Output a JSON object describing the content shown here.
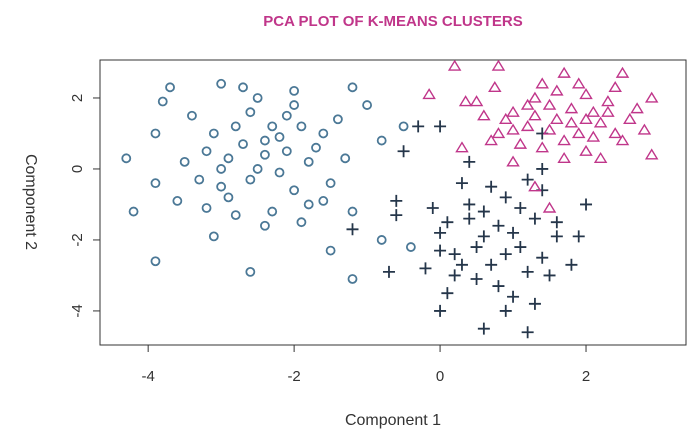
{
  "chart_data": {
    "type": "scatter",
    "title": "PCA PLOT OF K-MEANS CLUSTERS",
    "xlabel": "Component 1",
    "ylabel": "Component 2",
    "xlim": [
      -4.66,
      3.37
    ],
    "ylim": [
      -4.96,
      3.07
    ],
    "xticks": [
      -4,
      -2,
      0,
      2
    ],
    "yticks": [
      -4,
      -2,
      0,
      2
    ],
    "grid": false,
    "colors": {
      "title": "#c0368a",
      "circle": "#4b7896",
      "plus": "#25364a",
      "triangle": "#c0368a"
    },
    "series": [
      {
        "marker": "circle",
        "points": [
          [
            -4.3,
            0.3
          ],
          [
            -4.2,
            -1.2
          ],
          [
            -3.9,
            -2.6
          ],
          [
            -3.8,
            1.9
          ],
          [
            -3.7,
            2.3
          ],
          [
            -3.0,
            2.4
          ],
          [
            -2.6,
            -2.9
          ],
          [
            -3.1,
            -1.9
          ],
          [
            -1.2,
            2.3
          ],
          [
            -1.0,
            1.8
          ],
          [
            -1.2,
            -3.1
          ],
          [
            -1.2,
            -1.2
          ],
          [
            -0.8,
            -2.0
          ],
          [
            -0.5,
            1.2
          ],
          [
            -0.8,
            0.8
          ],
          [
            -1.5,
            -2.3
          ],
          [
            -0.4,
            -2.2
          ],
          [
            -3.9,
            1.0
          ],
          [
            -3.9,
            -0.4
          ],
          [
            -3.6,
            -0.9
          ],
          [
            -2.4,
            0.4
          ],
          [
            -2.8,
            1.2
          ],
          [
            -2.1,
            1.5
          ],
          [
            -2.6,
            -0.3
          ],
          [
            -2.0,
            -0.6
          ],
          [
            -3.2,
            0.5
          ],
          [
            -2.3,
            -1.2
          ],
          [
            -1.8,
            0.2
          ],
          [
            -2.9,
            -0.8
          ],
          [
            -2.5,
            2.0
          ],
          [
            -1.6,
            1.0
          ],
          [
            -3.4,
            1.5
          ],
          [
            -2.2,
            0.9
          ],
          [
            -1.9,
            -1.5
          ],
          [
            -3.0,
            0.0
          ],
          [
            -2.7,
            0.7
          ],
          [
            -1.5,
            -0.4
          ],
          [
            -3.3,
            -0.3
          ],
          [
            -2.0,
            2.2
          ],
          [
            -2.4,
            -1.6
          ],
          [
            -2.6,
            1.6
          ],
          [
            -1.7,
            0.6
          ],
          [
            -3.1,
            1.0
          ],
          [
            -2.2,
            -0.1
          ],
          [
            -2.8,
            -1.3
          ],
          [
            -1.4,
            1.4
          ],
          [
            -3.5,
            0.2
          ],
          [
            -2.3,
            1.2
          ],
          [
            -1.8,
            -1.0
          ],
          [
            -2.5,
            0.0
          ],
          [
            -2.9,
            0.3
          ],
          [
            -2.1,
            0.5
          ],
          [
            -1.6,
            -0.9
          ],
          [
            -3.2,
            -1.1
          ],
          [
            -2.7,
            2.3
          ],
          [
            -1.3,
            0.3
          ],
          [
            -2.0,
            1.8
          ],
          [
            -3.0,
            -0.5
          ],
          [
            -2.4,
            0.8
          ],
          [
            -1.9,
            1.2
          ]
        ]
      },
      {
        "marker": "plus",
        "points": [
          [
            0.0,
            1.2
          ],
          [
            -0.7,
            -2.9
          ],
          [
            0.0,
            -4.0
          ],
          [
            0.6,
            -4.5
          ],
          [
            1.2,
            -4.6
          ],
          [
            1.6,
            -1.9
          ],
          [
            1.9,
            -1.9
          ],
          [
            2.0,
            -1.0
          ],
          [
            1.8,
            -2.7
          ],
          [
            -0.6,
            -0.9
          ],
          [
            -0.5,
            0.5
          ],
          [
            -0.6,
            -1.3
          ],
          [
            1.4,
            0.0
          ],
          [
            1.4,
            -0.6
          ],
          [
            -0.3,
            1.2
          ],
          [
            1.4,
            1.0
          ],
          [
            -1.2,
            -1.7
          ],
          [
            0.8,
            -1.6
          ],
          [
            0.4,
            -1.0
          ],
          [
            1.1,
            -2.2
          ],
          [
            0.2,
            -2.4
          ],
          [
            0.9,
            -0.8
          ],
          [
            0.5,
            -3.1
          ],
          [
            1.3,
            -1.4
          ],
          [
            0.0,
            -1.8
          ],
          [
            0.7,
            -2.7
          ],
          [
            1.0,
            -3.6
          ],
          [
            0.3,
            -0.4
          ],
          [
            1.5,
            -3.0
          ],
          [
            -0.2,
            -2.8
          ],
          [
            0.6,
            -1.9
          ],
          [
            1.2,
            -0.3
          ],
          [
            0.1,
            -3.5
          ],
          [
            0.9,
            -2.4
          ],
          [
            0.4,
            -1.4
          ],
          [
            1.4,
            -2.5
          ],
          [
            0.7,
            -0.5
          ],
          [
            -0.1,
            -1.1
          ],
          [
            0.5,
            -2.2
          ],
          [
            1.1,
            -1.1
          ],
          [
            0.2,
            -3.0
          ],
          [
            0.8,
            -3.3
          ],
          [
            1.3,
            -3.8
          ],
          [
            0.0,
            -2.3
          ],
          [
            0.6,
            -1.2
          ],
          [
            1.0,
            -1.8
          ],
          [
            0.3,
            -2.7
          ],
          [
            1.6,
            -1.5
          ],
          [
            0.4,
            0.2
          ],
          [
            0.9,
            -4.0
          ],
          [
            0.1,
            -1.5
          ],
          [
            1.2,
            -2.9
          ]
        ]
      },
      {
        "marker": "triangle",
        "points": [
          [
            0.2,
            2.9
          ],
          [
            0.8,
            2.9
          ],
          [
            -0.15,
            2.1
          ],
          [
            0.35,
            1.9
          ],
          [
            0.75,
            2.3
          ],
          [
            1.7,
            2.7
          ],
          [
            2.5,
            2.7
          ],
          [
            2.9,
            2.0
          ],
          [
            2.9,
            0.4
          ],
          [
            1.3,
            -0.5
          ],
          [
            0.5,
            1.9
          ],
          [
            1.0,
            0.2
          ],
          [
            1.5,
            -1.1
          ],
          [
            0.3,
            0.6
          ],
          [
            2.2,
            0.3
          ],
          [
            1.8,
            1.3
          ],
          [
            1.5,
            1.8
          ],
          [
            2.1,
            1.6
          ],
          [
            1.2,
            1.2
          ],
          [
            2.4,
            1.0
          ],
          [
            1.7,
            0.8
          ],
          [
            1.0,
            1.6
          ],
          [
            2.0,
            2.1
          ],
          [
            2.6,
            1.4
          ],
          [
            1.4,
            0.6
          ],
          [
            1.9,
            1.0
          ],
          [
            0.8,
            1.0
          ],
          [
            2.3,
            1.9
          ],
          [
            1.6,
            2.2
          ],
          [
            1.1,
            0.7
          ],
          [
            2.5,
            0.8
          ],
          [
            1.3,
            2.0
          ],
          [
            2.0,
            0.5
          ],
          [
            1.8,
            1.7
          ],
          [
            0.9,
            1.4
          ],
          [
            2.2,
            1.3
          ],
          [
            1.5,
            1.1
          ],
          [
            2.7,
            1.7
          ],
          [
            1.2,
            1.8
          ],
          [
            1.9,
            2.4
          ],
          [
            0.7,
            0.8
          ],
          [
            2.4,
            2.3
          ],
          [
            1.6,
            1.4
          ],
          [
            2.1,
            0.9
          ],
          [
            1.0,
            1.1
          ],
          [
            2.8,
            1.1
          ],
          [
            1.4,
            2.4
          ],
          [
            1.7,
            0.3
          ],
          [
            2.3,
            1.6
          ],
          [
            0.6,
            1.5
          ],
          [
            2.0,
            1.4
          ],
          [
            1.3,
            1.5
          ]
        ]
      }
    ]
  }
}
